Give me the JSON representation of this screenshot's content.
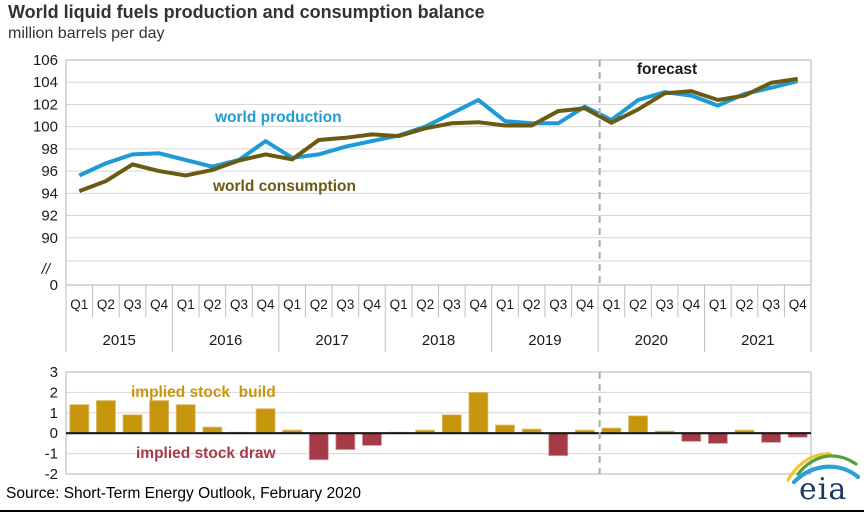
{
  "header": {
    "title": "World liquid fuels production and consumption balance",
    "subtitle": "million barrels per day"
  },
  "source_line": "Source: Short-Term Energy Outlook, February 2020",
  "logo": {
    "text": "eia"
  },
  "colors": {
    "production": "#1E9BD7",
    "consumption": "#6A5A13",
    "stock_build": "#C8960C",
    "stock_draw": "#A63A46",
    "grid": "#d6d6d6",
    "border": "#b0b0b0",
    "forecast_divider": "#ababab",
    "axis_text": "#1a1a1a"
  },
  "chart_data": [
    {
      "type": "line",
      "title": "World liquid fuels production and consumption balance",
      "ylabel": "million barrels per day",
      "y_tick_labels": [
        "106",
        "104",
        "102",
        "100",
        "98",
        "96",
        "94",
        "92",
        "90"
      ],
      "axis_break_label": "//",
      "zero_label": "0",
      "ylim": [
        90,
        106
      ],
      "grid": true,
      "forecast_label": "forecast",
      "forecast_starts_after": "2019 Q4",
      "quarters": [
        "Q1",
        "Q2",
        "Q3",
        "Q4",
        "Q1",
        "Q2",
        "Q3",
        "Q4",
        "Q1",
        "Q2",
        "Q3",
        "Q4",
        "Q1",
        "Q2",
        "Q3",
        "Q4",
        "Q1",
        "Q2",
        "Q3",
        "Q4",
        "Q1",
        "Q2",
        "Q3",
        "Q4",
        "Q1",
        "Q2",
        "Q3",
        "Q4"
      ],
      "years": [
        "2015",
        "2016",
        "2017",
        "2018",
        "2019",
        "2020",
        "2021"
      ],
      "series": [
        {
          "name": "world production",
          "values": [
            95.6,
            96.7,
            97.5,
            97.6,
            97.0,
            96.4,
            97.0,
            98.7,
            97.2,
            97.5,
            98.2,
            98.7,
            99.2,
            100.0,
            101.2,
            102.4,
            100.5,
            100.3,
            100.3,
            101.8,
            100.6,
            102.4,
            103.1,
            102.8,
            101.9,
            102.95,
            103.5,
            104.1
          ]
        },
        {
          "name": "world consumption",
          "values": [
            94.2,
            95.1,
            96.6,
            96.0,
            95.6,
            96.1,
            96.95,
            97.5,
            97.05,
            98.8,
            99.0,
            99.3,
            99.15,
            99.85,
            100.3,
            100.4,
            100.1,
            100.1,
            101.4,
            101.65,
            100.35,
            101.55,
            103.0,
            103.2,
            102.4,
            102.8,
            103.95,
            104.3
          ]
        }
      ]
    },
    {
      "type": "bar",
      "positive_label": "implied stock  build",
      "negative_label": "implied stock draw",
      "y_tick_labels": [
        "3",
        "2",
        "1",
        "0",
        "-1",
        "-2"
      ],
      "ylim": [
        -2,
        3
      ],
      "grid": true,
      "values": [
        1.4,
        1.6,
        0.9,
        1.6,
        1.4,
        0.3,
        0.05,
        1.2,
        0.15,
        -1.3,
        -0.8,
        -0.6,
        0.05,
        0.15,
        0.9,
        2.0,
        0.4,
        0.2,
        -1.1,
        0.15,
        0.25,
        0.85,
        0.1,
        -0.4,
        -0.5,
        0.15,
        -0.45,
        -0.2
      ]
    }
  ]
}
